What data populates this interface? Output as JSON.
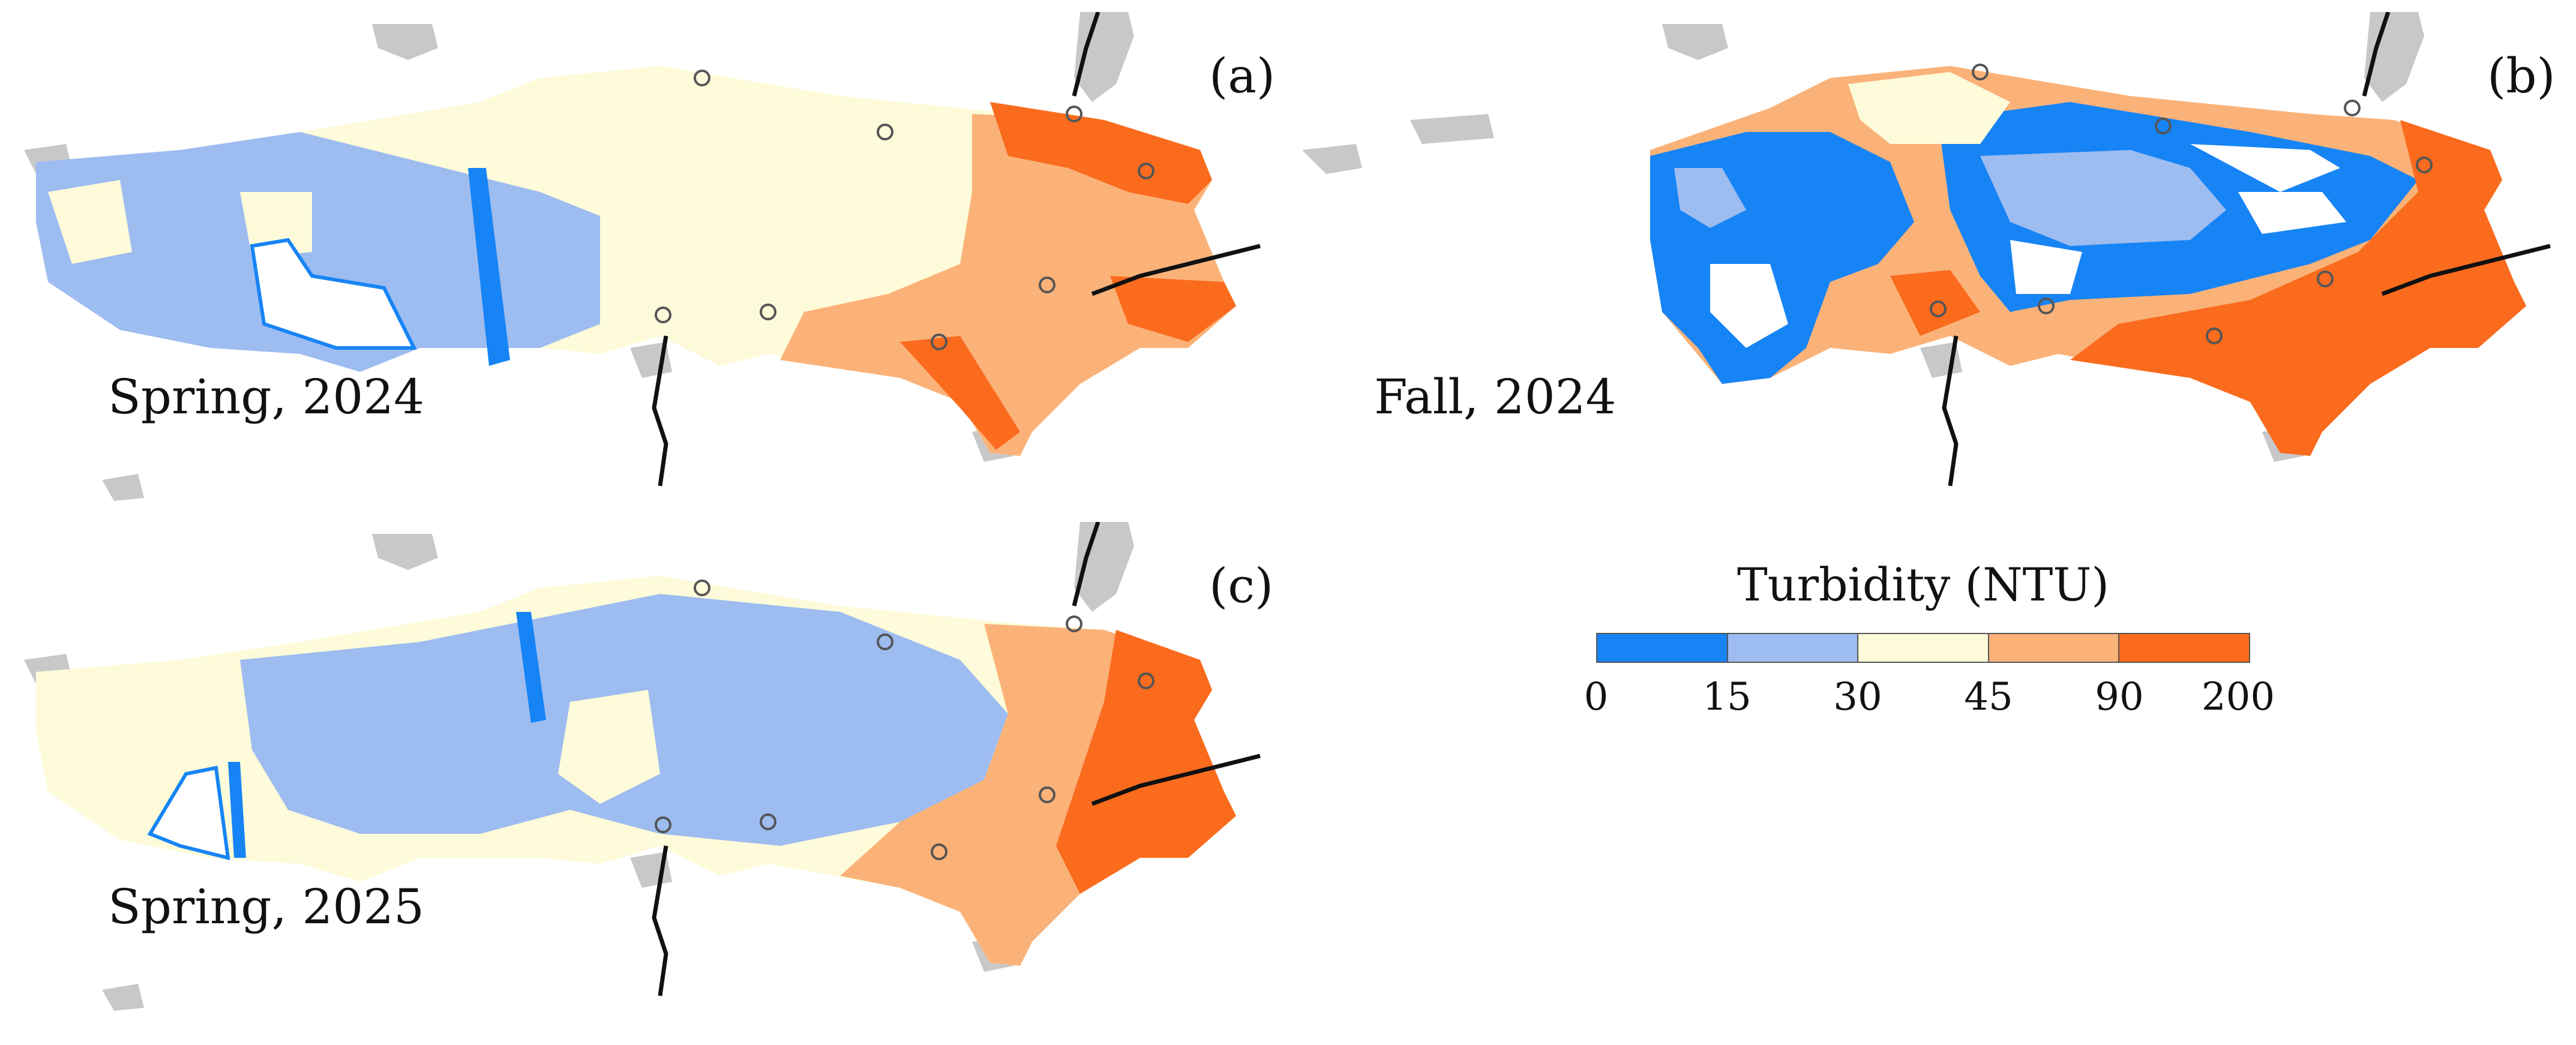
{
  "panels": [
    {
      "id": "a",
      "label": "(a)",
      "season": "Spring, 2024"
    },
    {
      "id": "b",
      "label": "(b)",
      "season": "Fall, 2024"
    },
    {
      "id": "c",
      "label": "(c)",
      "season": "Spring, 2025"
    }
  ],
  "legend": {
    "title": "Turbidity (NTU)",
    "breaks": [
      "0",
      "15",
      "30",
      "45",
      "90",
      "200"
    ],
    "colors": [
      "#1784f5",
      "#9dbcf0",
      "#fdfbd9",
      "#fbb278",
      "#fa6b1e"
    ]
  },
  "colors": {
    "land": "#c8c8c8",
    "river": "#111111",
    "water_empty": "#ffffff",
    "station": "#555555"
  }
}
